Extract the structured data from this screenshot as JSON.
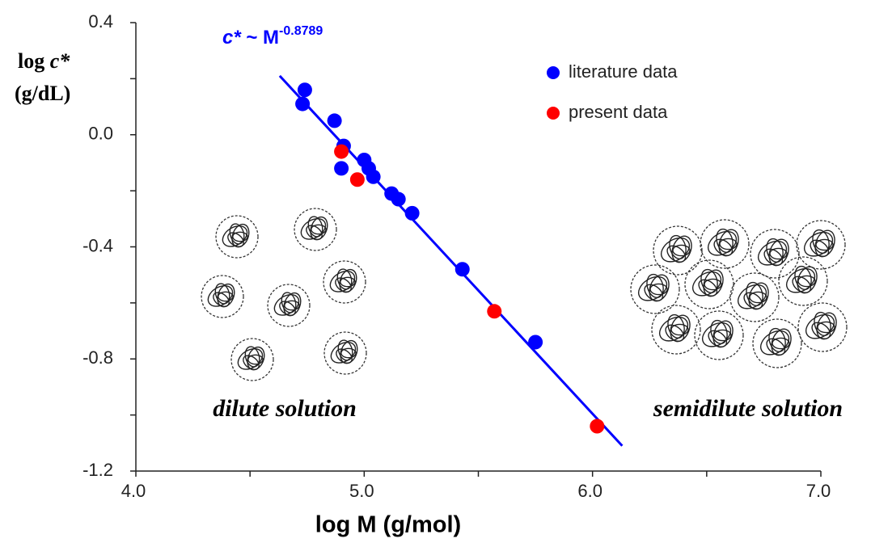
{
  "chart_data": {
    "type": "scatter",
    "equation": {
      "variable": "c*",
      "relation": " ~ M",
      "exponent": "-0.8789"
    },
    "xlabel": "log M (g/mol)",
    "ylabel": {
      "prefix": "log ",
      "variable": "c*",
      "unit": "(g/dL)"
    },
    "xlim": [
      4.0,
      7.0
    ],
    "ylim": [
      -1.2,
      0.4
    ],
    "xticks": [
      {
        "value": 4,
        "label": "4.0"
      },
      {
        "value": 5,
        "label": "5.0"
      },
      {
        "value": 6,
        "label": "6.0"
      },
      {
        "value": 7,
        "label": "7.0"
      }
    ],
    "yticks": [
      -1.2,
      -0.8,
      -0.4,
      {
        "value": 0,
        "label": "0.0"
      },
      0.4
    ],
    "xminorticks": [
      4.5,
      5.5,
      6.5
    ],
    "yminorticks": [
      -1.0,
      -0.6,
      -0.2,
      0.2
    ],
    "series": [
      {
        "name": "literature data",
        "color": "#0000ff",
        "x": [
          4.73,
          4.74,
          4.87,
          4.91,
          4.9,
          5.0,
          5.02,
          5.04,
          5.12,
          5.15,
          5.21,
          5.43,
          5.75
        ],
        "values": [
          0.11,
          0.16,
          0.05,
          -0.04,
          -0.12,
          -0.09,
          -0.12,
          -0.15,
          -0.21,
          -0.23,
          -0.28,
          -0.48,
          -0.74
        ]
      },
      {
        "name": "present data",
        "color": "#ff0000",
        "x": [
          4.9,
          4.97,
          5.57,
          6.02
        ],
        "values": [
          -0.06,
          -0.16,
          -0.63,
          -1.04
        ]
      }
    ],
    "fit": {
      "color": "#0000ff",
      "x": [
        4.63,
        6.13
      ],
      "values": [
        0.21,
        -1.11
      ]
    },
    "annotations": [
      "dilute solution",
      "semidilute solution"
    ]
  }
}
